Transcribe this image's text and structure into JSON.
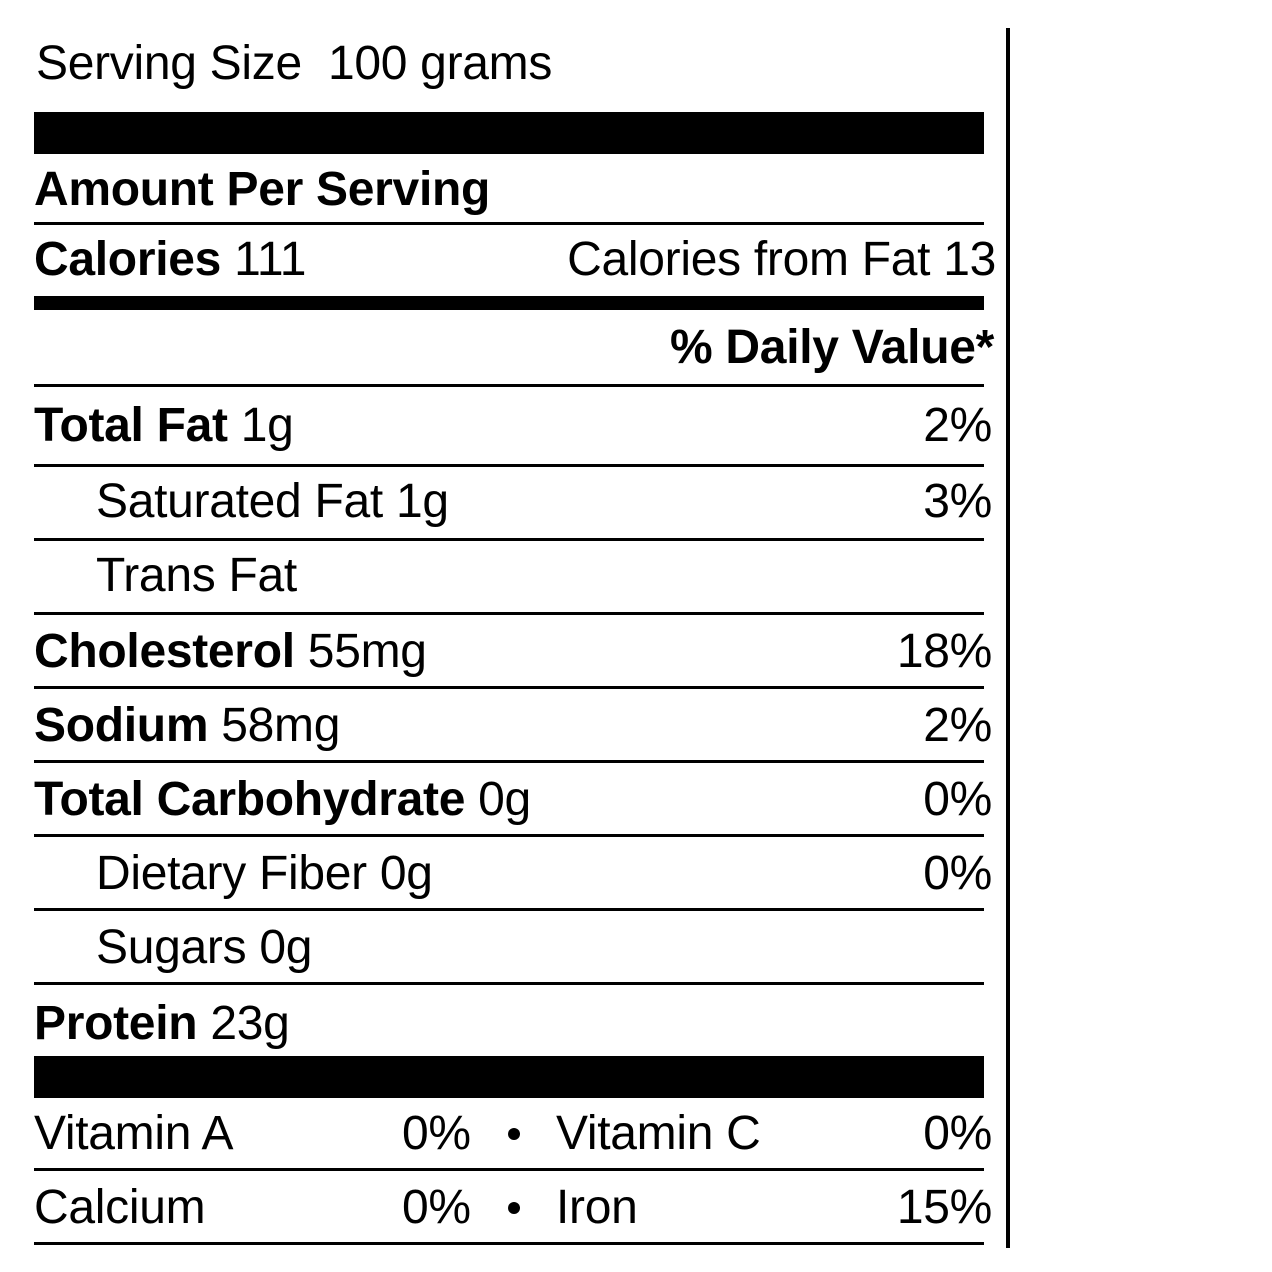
{
  "serving": {
    "label": "Serving Size",
    "value": "100 grams"
  },
  "amount_per_serving": "Amount Per Serving",
  "calories": {
    "label": "Calories",
    "value": "111",
    "from_fat_label": "Calories from Fat",
    "from_fat_value": "13"
  },
  "daily_value_header": "% Daily Value*",
  "nutrients": [
    {
      "name": "Total Fat",
      "amount": "1g",
      "dv": "2%",
      "bold": true
    },
    {
      "name": "Saturated Fat",
      "amount": "1g",
      "dv": "3%",
      "bold": false
    },
    {
      "name": "Trans Fat",
      "amount": "",
      "dv": "",
      "bold": false
    },
    {
      "name": "Cholesterol",
      "amount": "55mg",
      "dv": "18%",
      "bold": true
    },
    {
      "name": "Sodium",
      "amount": "58mg",
      "dv": "2%",
      "bold": true
    },
    {
      "name": "Total Carbohydrate",
      "amount": "0g",
      "dv": "0%",
      "bold": true
    },
    {
      "name": "Dietary Fiber",
      "amount": "0g",
      "dv": "0%",
      "bold": false
    },
    {
      "name": "Sugars",
      "amount": "0g",
      "dv": "",
      "bold": false
    },
    {
      "name": "Protein",
      "amount": "23g",
      "dv": "",
      "bold": true
    }
  ],
  "vitamins": [
    {
      "left_name": "Vitamin A",
      "left_value": "0%",
      "right_name": "Vitamin C",
      "right_value": "0%"
    },
    {
      "left_name": "Calcium",
      "left_value": "0%",
      "right_name": "Iron",
      "right_value": "15%"
    }
  ]
}
